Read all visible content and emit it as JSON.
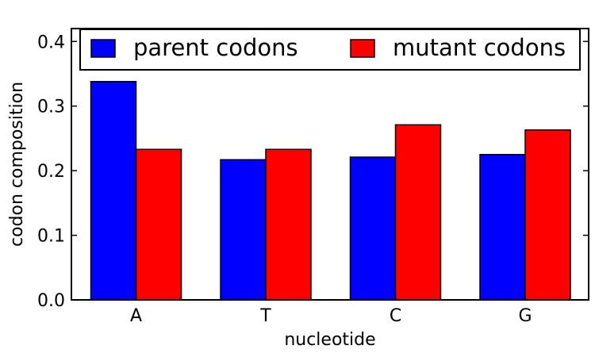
{
  "chart_data": {
    "type": "bar",
    "categories": [
      "A",
      "T",
      "C",
      "G"
    ],
    "series": [
      {
        "name": "parent codons",
        "color": "#0000ff",
        "values": [
          0.338,
          0.217,
          0.221,
          0.225
        ]
      },
      {
        "name": "mutant codons",
        "color": "#ff0000",
        "values": [
          0.233,
          0.233,
          0.271,
          0.263
        ]
      }
    ],
    "xlabel": "nucleotide",
    "ylabel": "codon composition",
    "ylim": [
      0,
      0.42
    ],
    "yticks": [
      "0.0",
      "0.1",
      "0.2",
      "0.3",
      "0.4"
    ],
    "ytick_values": [
      0,
      0.1,
      0.2,
      0.3,
      0.4
    ],
    "grid": false,
    "legend_position": "top",
    "legend_columns": 2
  }
}
